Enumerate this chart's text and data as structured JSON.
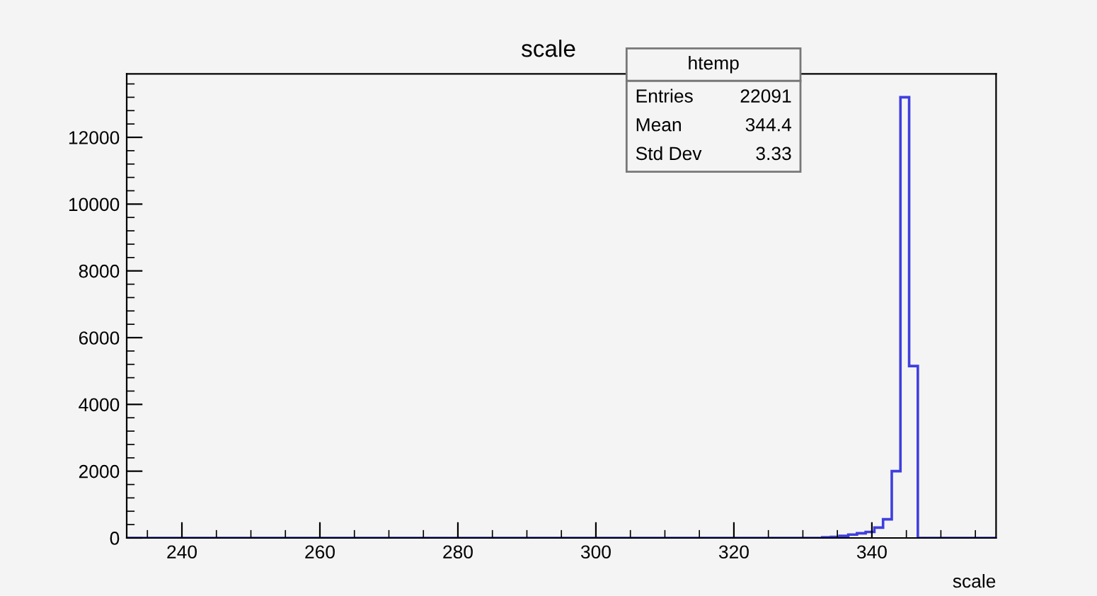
{
  "chart_data": {
    "type": "histogram",
    "title": "scale",
    "xlabel": "scale",
    "bins": [
      232,
      332.8,
      334.06,
      335.32,
      336.58,
      337.84,
      339.1,
      340.36,
      341.62,
      342.88,
      344.14,
      345.4,
      346.66,
      358
    ],
    "values": [
      0,
      20,
      30,
      60,
      100,
      140,
      180,
      310,
      560,
      2000,
      13200,
      5150,
      0
    ],
    "color": "#3f3fdf",
    "xlim": [
      232,
      358
    ],
    "xticks": [
      240,
      260,
      280,
      300,
      320,
      340
    ],
    "ylim": [
      0,
      13900
    ],
    "yticks": [
      0,
      2000,
      4000,
      6000,
      8000,
      10000,
      12000
    ],
    "grid": false,
    "annotations": [
      "htemp",
      "Entries",
      "22091",
      "Mean",
      "344.4",
      "Std Dev",
      "3.33"
    ]
  }
}
